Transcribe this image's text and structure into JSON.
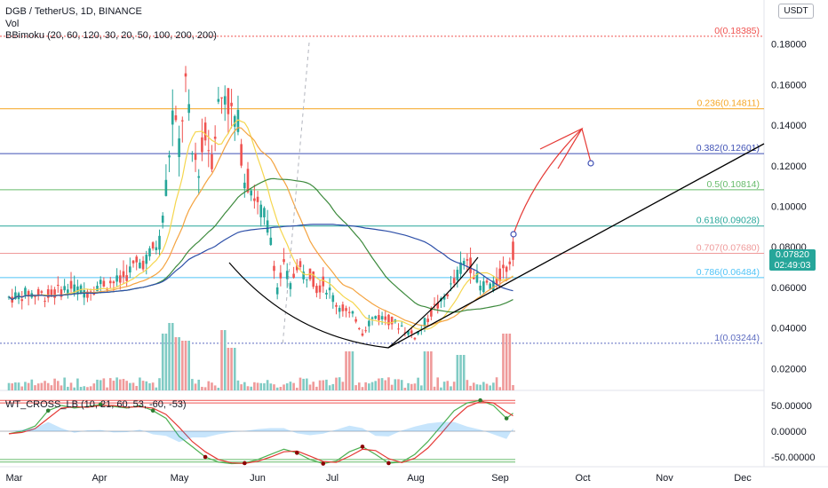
{
  "header": {
    "symbol_line": "DGB / TetherUS, 1D, BINANCE",
    "vol_label": "Vol",
    "bbimoku_label": "BBimoku (20, 60, 120, 30, 20, 50, 100, 200, 200)",
    "wt_label": "WT_CROSS_LB (10, 21, 60, 53, -60, -53)",
    "currency_badge": "USDT"
  },
  "last_price": {
    "value": "0.07820",
    "countdown": "02:49:03",
    "color": "#26a69a"
  },
  "colors": {
    "up": "#26a69a",
    "down": "#ef5350",
    "sma_yellow": "#f5d64e",
    "sma_orange": "#f4a340",
    "sma_green": "#3d8a3d",
    "sma_blue": "#2d4fa8",
    "trend_black": "#000000",
    "arrow_red": "#e53935"
  },
  "chart_data": {
    "type": "candlestick",
    "price_axis": {
      "ylim": [
        0.0,
        0.2
      ],
      "ticks": [
        "0.18000",
        "0.16000",
        "0.14000",
        "0.12000",
        "0.10000",
        "0.08000",
        "0.06000",
        "0.04000",
        "0.02000"
      ]
    },
    "x_axis": {
      "ticks": [
        "Mar",
        "Apr",
        "May",
        "Jun",
        "Jul",
        "Aug",
        "Sep",
        "Oct",
        "Nov",
        "Dec"
      ]
    },
    "fib_levels": [
      {
        "label": "0(0.18385)",
        "value": 0.18385,
        "color": "#ef5350"
      },
      {
        "label": "0.236(0.14811)",
        "value": 0.14811,
        "color": "#f5a623"
      },
      {
        "label": "0.382(0.12601)",
        "value": 0.12601,
        "color": "#3f51b5"
      },
      {
        "label": "0.5(0.10814)",
        "value": 0.10814,
        "color": "#66bb6a"
      },
      {
        "label": "0.618(0.09028)",
        "value": 0.09028,
        "color": "#26a69a"
      },
      {
        "label": "0.707(0.07680)",
        "value": 0.0768,
        "color": "#ef9a9a"
      },
      {
        "label": "0.786(0.06484)",
        "value": 0.06484,
        "color": "#4fc3f7"
      },
      {
        "label": "1(0.03244)",
        "value": 0.03244,
        "color": "#5c6bc0"
      }
    ],
    "price_path": [
      [
        0,
        0.055
      ],
      [
        3,
        0.057
      ],
      [
        6,
        0.056
      ],
      [
        9,
        0.06
      ],
      [
        12,
        0.058
      ],
      [
        14,
        0.062
      ],
      [
        17,
        0.063
      ],
      [
        19,
        0.07
      ],
      [
        21,
        0.074
      ],
      [
        23,
        0.083
      ],
      [
        24,
        0.11
      ],
      [
        25,
        0.145
      ],
      [
        26,
        0.13
      ],
      [
        27,
        0.16
      ],
      [
        28,
        0.125
      ],
      [
        29,
        0.12
      ],
      [
        30,
        0.135
      ],
      [
        31,
        0.125
      ],
      [
        32,
        0.15
      ],
      [
        33,
        0.158
      ],
      [
        34,
        0.145
      ],
      [
        35,
        0.14
      ],
      [
        36,
        0.115
      ],
      [
        37,
        0.11
      ],
      [
        38,
        0.1
      ],
      [
        39,
        0.095
      ],
      [
        40,
        0.085
      ],
      [
        41,
        0.06
      ],
      [
        42,
        0.07
      ],
      [
        43,
        0.06
      ],
      [
        44,
        0.072
      ],
      [
        45,
        0.066
      ],
      [
        46,
        0.068
      ],
      [
        47,
        0.06
      ],
      [
        48,
        0.062
      ],
      [
        49,
        0.058
      ],
      [
        50,
        0.052
      ],
      [
        51,
        0.05
      ],
      [
        52,
        0.046
      ],
      [
        53,
        0.045
      ],
      [
        54,
        0.038
      ],
      [
        55,
        0.043
      ],
      [
        56,
        0.046
      ],
      [
        57,
        0.045
      ],
      [
        58,
        0.044
      ],
      [
        59,
        0.042
      ],
      [
        60,
        0.041
      ],
      [
        61,
        0.038
      ],
      [
        62,
        0.036
      ],
      [
        63,
        0.04
      ],
      [
        64,
        0.045
      ],
      [
        65,
        0.05
      ],
      [
        66,
        0.052
      ],
      [
        67,
        0.058
      ],
      [
        68,
        0.062
      ],
      [
        69,
        0.07
      ],
      [
        70,
        0.074
      ],
      [
        71,
        0.068
      ],
      [
        72,
        0.06
      ],
      [
        73,
        0.062
      ],
      [
        74,
        0.06
      ],
      [
        75,
        0.066
      ],
      [
        76,
        0.07
      ],
      [
        77,
        0.0782
      ]
    ],
    "volume_axis": {
      "note": "relative"
    },
    "volume_spikes": [
      [
        24,
        0.55
      ],
      [
        25,
        0.7
      ],
      [
        26,
        0.5
      ],
      [
        27,
        0.45
      ],
      [
        33,
        0.6
      ],
      [
        34,
        0.35
      ],
      [
        52,
        0.3
      ],
      [
        64,
        0.3
      ],
      [
        69,
        0.25
      ],
      [
        76,
        0.55
      ]
    ],
    "wt_axis": {
      "ticks": [
        "50.00000",
        "0.00000",
        "-50.00000"
      ],
      "ylim": [
        -70,
        70
      ]
    },
    "wt_path": [
      [
        0,
        -5
      ],
      [
        2,
        0
      ],
      [
        4,
        10
      ],
      [
        6,
        40
      ],
      [
        8,
        50
      ],
      [
        10,
        45
      ],
      [
        12,
        48
      ],
      [
        14,
        52
      ],
      [
        16,
        48
      ],
      [
        18,
        45
      ],
      [
        20,
        50
      ],
      [
        22,
        40
      ],
      [
        24,
        25
      ],
      [
        26,
        -10
      ],
      [
        28,
        -30
      ],
      [
        30,
        -50
      ],
      [
        32,
        -60
      ],
      [
        34,
        -63
      ],
      [
        36,
        -62
      ],
      [
        38,
        -55
      ],
      [
        40,
        -45
      ],
      [
        42,
        -35
      ],
      [
        44,
        -42
      ],
      [
        46,
        -55
      ],
      [
        48,
        -63
      ],
      [
        50,
        -58
      ],
      [
        52,
        -40
      ],
      [
        54,
        -30
      ],
      [
        56,
        -45
      ],
      [
        58,
        -62
      ],
      [
        60,
        -60
      ],
      [
        62,
        -45
      ],
      [
        64,
        -20
      ],
      [
        66,
        10
      ],
      [
        68,
        40
      ],
      [
        70,
        55
      ],
      [
        72,
        60
      ],
      [
        74,
        50
      ],
      [
        76,
        25
      ],
      [
        77,
        35
      ]
    ]
  }
}
